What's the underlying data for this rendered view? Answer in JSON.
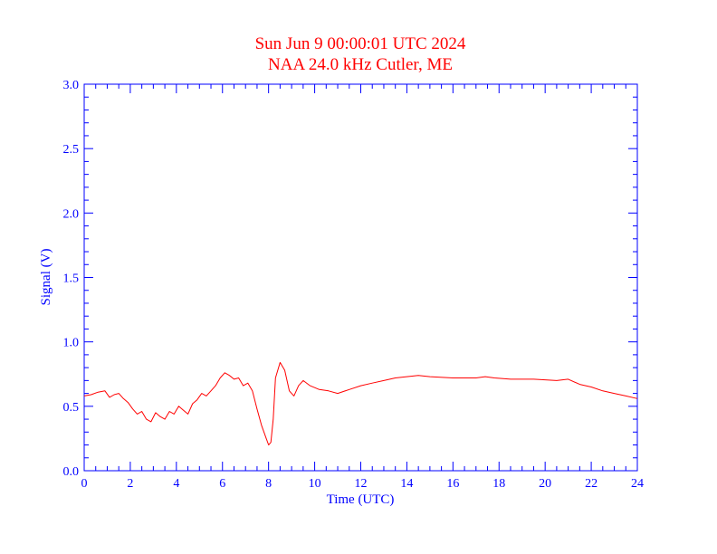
{
  "colors": {
    "title": "#ff0000",
    "axes": "#0000ff",
    "series": "#ff0000",
    "background": "#ffffff"
  },
  "chart_data": {
    "type": "line",
    "title": "Sun Jun 9 00:00:01 UTC 2024",
    "subtitle": "NAA 24.0 kHz Cutler, ME",
    "xlabel": "Time (UTC)",
    "ylabel": "Signal (V)",
    "xlim": [
      0,
      24
    ],
    "ylim": [
      0,
      3
    ],
    "x_ticks": [
      "0",
      "2",
      "4",
      "6",
      "8",
      "10",
      "12",
      "14",
      "16",
      "18",
      "20",
      "22",
      "24"
    ],
    "y_ticks": [
      "0.0",
      "0.5",
      "1.0",
      "1.5",
      "2.0",
      "2.5",
      "3.0"
    ],
    "grid": false,
    "series": [
      {
        "x": [
          0,
          0.3,
          0.6,
          0.9,
          1.1,
          1.3,
          1.5,
          1.7,
          1.9,
          2.1,
          2.3,
          2.5,
          2.7,
          2.9,
          3.1,
          3.3,
          3.5,
          3.7,
          3.9,
          4.1,
          4.3,
          4.5,
          4.7,
          4.9,
          5.1,
          5.3,
          5.5,
          5.7,
          5.9,
          6.1,
          6.3,
          6.5,
          6.7,
          6.9,
          7.1,
          7.3,
          7.5,
          7.7,
          7.9,
          8.0,
          8.1,
          8.2,
          8.3,
          8.5,
          8.7,
          8.9,
          9.1,
          9.3,
          9.5,
          9.8,
          10.2,
          10.6,
          11.0,
          11.5,
          12.0,
          12.5,
          13.0,
          13.5,
          14.0,
          14.5,
          15.0,
          16.0,
          17.0,
          17.4,
          17.8,
          18.5,
          19.5,
          20.5,
          21.0,
          21.5,
          22.0,
          22.5,
          23.0,
          23.5,
          24.0
        ],
        "y": [
          0.58,
          0.59,
          0.61,
          0.62,
          0.57,
          0.59,
          0.6,
          0.56,
          0.53,
          0.48,
          0.44,
          0.46,
          0.4,
          0.38,
          0.45,
          0.42,
          0.4,
          0.46,
          0.44,
          0.5,
          0.47,
          0.44,
          0.52,
          0.55,
          0.6,
          0.58,
          0.62,
          0.66,
          0.72,
          0.76,
          0.74,
          0.71,
          0.72,
          0.66,
          0.68,
          0.62,
          0.48,
          0.35,
          0.25,
          0.2,
          0.22,
          0.4,
          0.72,
          0.84,
          0.78,
          0.62,
          0.58,
          0.66,
          0.7,
          0.66,
          0.63,
          0.62,
          0.6,
          0.63,
          0.66,
          0.68,
          0.7,
          0.72,
          0.73,
          0.74,
          0.73,
          0.72,
          0.72,
          0.73,
          0.72,
          0.71,
          0.71,
          0.7,
          0.71,
          0.67,
          0.65,
          0.62,
          0.6,
          0.58,
          0.56
        ]
      }
    ]
  }
}
